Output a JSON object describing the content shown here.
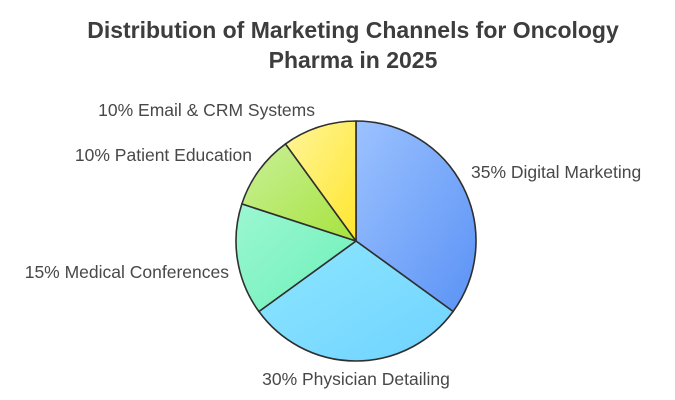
{
  "chart_data": {
    "type": "pie",
    "title_lines": [
      "Distribution of Marketing Channels for Oncology",
      "Pharma in 2025"
    ],
    "slices": [
      {
        "label": "35% Digital Marketing",
        "name": "Digital Marketing",
        "value": 35,
        "colors": [
          "#9cc2ff",
          "#5a92f5"
        ]
      },
      {
        "label": "30% Physician Detailing",
        "name": "Physician Detailing",
        "value": 30,
        "colors": [
          "#8ee6ff",
          "#6fd3ff"
        ]
      },
      {
        "label": "15% Medical Conferences",
        "name": "Medical Conferences",
        "value": 15,
        "colors": [
          "#9cf7d2",
          "#6cf0b8"
        ]
      },
      {
        "label": "10% Patient Education",
        "name": "Patient Education",
        "value": 10,
        "colors": [
          "#c9f09a",
          "#a7e33c"
        ]
      },
      {
        "label": "10% Email & CRM Systems",
        "name": "Email & CRM Systems",
        "value": 10,
        "colors": [
          "#fff59a",
          "#ffe62e"
        ]
      }
    ],
    "start_angle_deg": 0,
    "direction": "clockwise",
    "legend": "none",
    "grid": false
  }
}
